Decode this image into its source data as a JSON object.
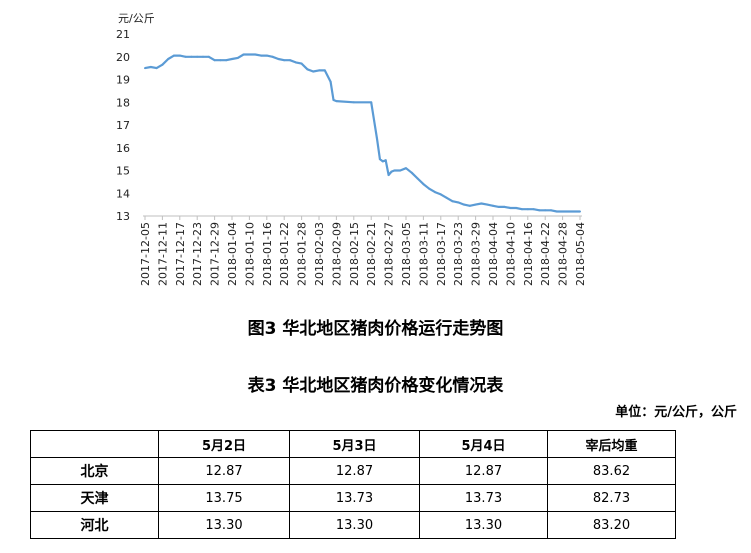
{
  "chart_data": {
    "type": "line",
    "title": "图3 华北地区猪肉价格运行走势图",
    "ylabel": "元/公斤",
    "xlabel": "",
    "ylim": [
      13,
      21
    ],
    "yticks": [
      13,
      14,
      15,
      16,
      17,
      18,
      19,
      20,
      21
    ],
    "grid": false,
    "line_color": "#5b9bd5",
    "x_ticks": [
      "2017-12-05",
      "2017-12-11",
      "2017-12-17",
      "2017-12-23",
      "2017-12-29",
      "2018-01-04",
      "2018-01-10",
      "2018-01-16",
      "2018-01-22",
      "2018-01-28",
      "2018-02-03",
      "2018-02-09",
      "2018-02-15",
      "2018-02-21",
      "2018-02-27",
      "2018-03-05",
      "2018-03-11",
      "2018-03-17",
      "2018-03-23",
      "2018-03-29",
      "2018-04-04",
      "2018-04-10",
      "2018-04-16",
      "2018-04-22",
      "2018-04-28",
      "2018-05-04"
    ],
    "x": [
      "2017-12-05",
      "2017-12-07",
      "2017-12-09",
      "2017-12-11",
      "2017-12-13",
      "2017-12-15",
      "2017-12-17",
      "2017-12-19",
      "2017-12-21",
      "2017-12-23",
      "2017-12-25",
      "2017-12-27",
      "2017-12-29",
      "2017-12-31",
      "2018-01-02",
      "2018-01-04",
      "2018-01-06",
      "2018-01-08",
      "2018-01-10",
      "2018-01-12",
      "2018-01-14",
      "2018-01-16",
      "2018-01-18",
      "2018-01-20",
      "2018-01-22",
      "2018-01-24",
      "2018-01-26",
      "2018-01-28",
      "2018-01-30",
      "2018-02-01",
      "2018-02-03",
      "2018-02-05",
      "2018-02-07",
      "2018-02-08",
      "2018-02-09",
      "2018-02-15",
      "2018-02-21",
      "2018-02-22",
      "2018-02-23",
      "2018-02-24",
      "2018-02-25",
      "2018-02-26",
      "2018-02-27",
      "2018-02-28",
      "2018-03-01",
      "2018-03-03",
      "2018-03-05",
      "2018-03-07",
      "2018-03-09",
      "2018-03-11",
      "2018-03-13",
      "2018-03-15",
      "2018-03-17",
      "2018-03-19",
      "2018-03-21",
      "2018-03-23",
      "2018-03-25",
      "2018-03-27",
      "2018-03-29",
      "2018-03-31",
      "2018-04-02",
      "2018-04-04",
      "2018-04-06",
      "2018-04-08",
      "2018-04-10",
      "2018-04-12",
      "2018-04-14",
      "2018-04-16",
      "2018-04-18",
      "2018-04-20",
      "2018-04-22",
      "2018-04-24",
      "2018-04-26",
      "2018-04-28",
      "2018-05-02",
      "2018-05-04"
    ],
    "y": [
      19.5,
      19.55,
      19.5,
      19.65,
      19.9,
      20.05,
      20.05,
      20.0,
      20.0,
      20.0,
      20.0,
      20.0,
      19.85,
      19.85,
      19.85,
      19.9,
      19.95,
      20.1,
      20.1,
      20.1,
      20.05,
      20.05,
      20.0,
      19.9,
      19.85,
      19.85,
      19.75,
      19.7,
      19.45,
      19.35,
      19.4,
      19.4,
      18.9,
      18.1,
      18.05,
      18.0,
      18.0,
      17.2,
      16.4,
      15.5,
      15.4,
      15.45,
      14.8,
      14.95,
      15.0,
      15.0,
      15.1,
      14.9,
      14.65,
      14.4,
      14.2,
      14.05,
      13.95,
      13.8,
      13.65,
      13.6,
      13.5,
      13.45,
      13.5,
      13.55,
      13.5,
      13.45,
      13.4,
      13.4,
      13.35,
      13.35,
      13.3,
      13.3,
      13.3,
      13.25,
      13.25,
      13.25,
      13.2,
      13.2,
      13.2,
      13.2
    ]
  },
  "table": {
    "title": "表3 华北地区猪肉价格变化情况表",
    "unit_note": "单位：元/公斤，公斤",
    "headers": [
      "",
      "5月2日",
      "5月3日",
      "5月4日",
      "宰后均重"
    ],
    "rows": [
      {
        "region": "北京",
        "cells": [
          "12.87",
          "12.87",
          "12.87",
          "83.62"
        ]
      },
      {
        "region": "天津",
        "cells": [
          "13.75",
          "13.73",
          "13.73",
          "82.73"
        ]
      },
      {
        "region": "河北",
        "cells": [
          "13.30",
          "13.30",
          "13.30",
          "83.20"
        ]
      }
    ]
  }
}
